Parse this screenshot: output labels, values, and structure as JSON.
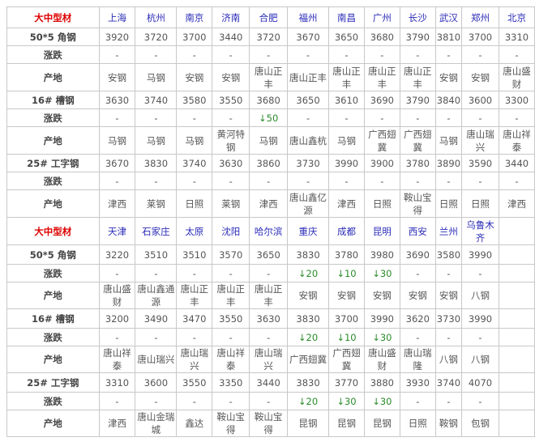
{
  "sections": [
    {
      "header": "大中型材",
      "cities": [
        "上海",
        "杭州",
        "南京",
        "济南",
        "合肥",
        "福州",
        "南昌",
        "广州",
        "长沙",
        "武汉",
        "郑州",
        "北京"
      ],
      "rows": [
        {
          "label": "50*5 角钢",
          "type": "price",
          "values": [
            "3920",
            "3720",
            "3700",
            "3440",
            "3720",
            "3670",
            "3650",
            "3680",
            "3790",
            "3810",
            "3700",
            "3310"
          ]
        },
        {
          "label": "涨跌",
          "type": "change",
          "values": [
            "-",
            "-",
            "-",
            "-",
            "-",
            "-",
            "-",
            "-",
            "-",
            "-",
            "-",
            "-"
          ]
        },
        {
          "label": "产地",
          "type": "origin",
          "values": [
            "安钢",
            "马钢",
            "安钢",
            "安钢",
            "唐山正丰",
            "唐山正丰",
            "唐山正丰",
            "唐山正丰",
            "唐山正丰",
            "安钢",
            "安钢",
            "唐山盛财"
          ]
        },
        {
          "label": "16# 槽钢",
          "type": "price",
          "values": [
            "3630",
            "3740",
            "3580",
            "3550",
            "3680",
            "3650",
            "3610",
            "3690",
            "3790",
            "3840",
            "3600",
            "3300"
          ]
        },
        {
          "label": "涨跌",
          "type": "change",
          "values": [
            "-",
            "-",
            "-",
            "-",
            "↓50",
            "-",
            "-",
            "-",
            "-",
            "-",
            "-",
            "-"
          ]
        },
        {
          "label": "产地",
          "type": "origin",
          "values": [
            "马钢",
            "马钢",
            "马钢",
            "黄河特钢",
            "马钢",
            "唐山鑫杭",
            "马钢",
            "广西翅冀",
            "广西翅冀",
            "马钢",
            "唐山瑞兴",
            "唐山祥泰"
          ]
        },
        {
          "label": "25# 工字钢",
          "type": "price",
          "values": [
            "3670",
            "3830",
            "3740",
            "3630",
            "3860",
            "3730",
            "3990",
            "3900",
            "3780",
            "3890",
            "3590",
            "3440"
          ]
        },
        {
          "label": "涨跌",
          "type": "change",
          "values": [
            "-",
            "-",
            "-",
            "-",
            "-",
            "-",
            "-",
            "-",
            "-",
            "-",
            "-",
            "-"
          ]
        },
        {
          "label": "产地",
          "type": "origin",
          "values": [
            "津西",
            "莱钢",
            "日照",
            "莱钢",
            "津西",
            "唐山鑫亿源",
            "津西",
            "日照",
            "鞍山宝得",
            "日照",
            "日照",
            "津西"
          ]
        }
      ]
    },
    {
      "header": "大中型材",
      "cities": [
        "天津",
        "石家庄",
        "太原",
        "沈阳",
        "哈尔滨",
        "重庆",
        "成都",
        "昆明",
        "西安",
        "兰州",
        "乌鲁木齐",
        ""
      ],
      "rows": [
        {
          "label": "50*5 角钢",
          "type": "price",
          "values": [
            "3220",
            "3510",
            "3510",
            "3570",
            "3650",
            "3830",
            "3780",
            "3980",
            "3690",
            "3580",
            "3990",
            ""
          ]
        },
        {
          "label": "涨跌",
          "type": "change",
          "values": [
            "-",
            "-",
            "-",
            "-",
            "-",
            "↓20",
            "↓10",
            "↓30",
            "-",
            "-",
            "-",
            ""
          ]
        },
        {
          "label": "产地",
          "type": "origin",
          "values": [
            "唐山盛财",
            "唐山鑫通源",
            "唐山正丰",
            "唐山正丰",
            "唐山正丰",
            "安钢",
            "安钢",
            "安钢",
            "安钢",
            "安钢",
            "八钢",
            ""
          ]
        },
        {
          "label": "16# 槽钢",
          "type": "price",
          "values": [
            "3200",
            "3490",
            "3470",
            "3550",
            "3630",
            "3830",
            "3700",
            "3990",
            "3620",
            "3730",
            "3990",
            ""
          ]
        },
        {
          "label": "涨跌",
          "type": "change",
          "values": [
            "-",
            "-",
            "-",
            "-",
            "-",
            "↓20",
            "↓10",
            "↓30",
            "-",
            "-",
            "-",
            ""
          ]
        },
        {
          "label": "产地",
          "type": "origin",
          "values": [
            "唐山祥泰",
            "唐山瑞兴",
            "唐山瑞兴",
            "唐山祥泰",
            "唐山瑞兴",
            "广西翅冀",
            "广西翅冀",
            "唐山盛财",
            "唐山瑞隆",
            "八钢",
            "八钢",
            ""
          ]
        },
        {
          "label": "25# 工字钢",
          "type": "price",
          "values": [
            "3310",
            "3600",
            "3550",
            "3350",
            "3440",
            "3830",
            "3770",
            "3880",
            "3930",
            "3740",
            "4070",
            ""
          ]
        },
        {
          "label": "涨跌",
          "type": "change",
          "values": [
            "-",
            "-",
            "-",
            "-",
            "-",
            "↓20",
            "↓30",
            "↓30",
            "-",
            "-",
            "-",
            ""
          ]
        },
        {
          "label": "产地",
          "type": "origin",
          "values": [
            "津西",
            "唐山金瑞城",
            "鑫达",
            "鞍山宝得",
            "鞍山宝得",
            "昆钢",
            "昆钢",
            "昆钢",
            "日照",
            "鞍钢",
            "包钢",
            ""
          ]
        }
      ]
    }
  ],
  "colors": {
    "header": "#dd0000",
    "city": "#2b2bb8",
    "down": "#2a8a2a"
  }
}
